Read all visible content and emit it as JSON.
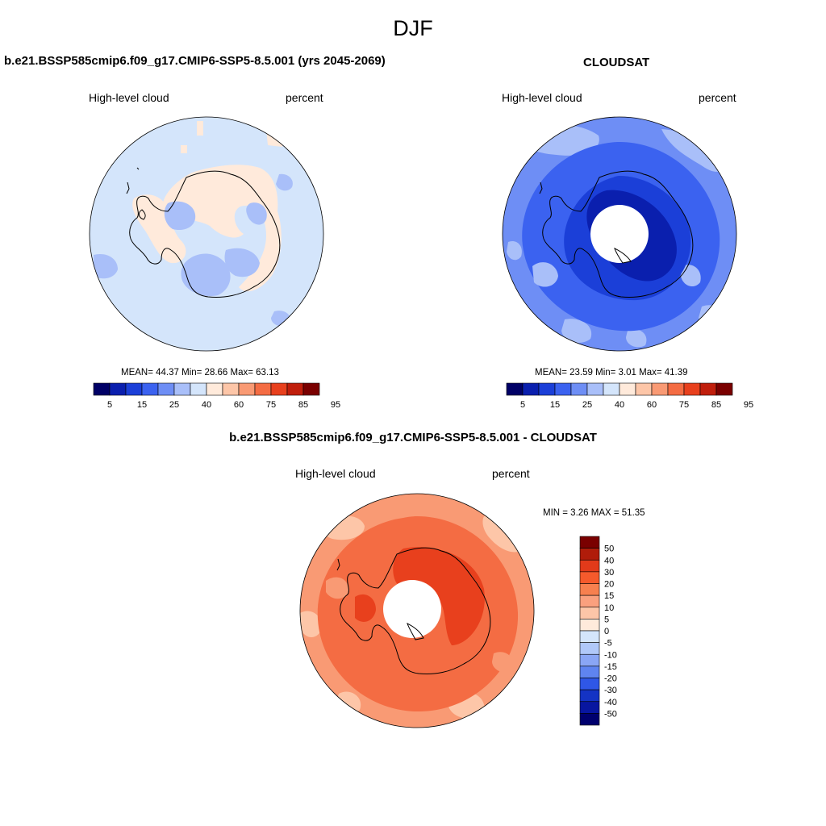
{
  "figure": {
    "season": "DJF"
  },
  "panels": [
    {
      "title": "b.e21.BSSP585cmip6.f09_g17.CMIP6-SSP5-8.5.001 (yrs 2045-2069)",
      "variable": "High-level cloud",
      "units": "percent",
      "stats": "MEAN=  44.37  Min=  28.66  Max=  63.13",
      "has_hole": false
    },
    {
      "title": "CLOUDSAT",
      "variable": "High-level cloud",
      "units": "percent",
      "stats": "MEAN=  23.59  Min=   3.01  Max=  41.39",
      "has_hole": true
    },
    {
      "title": "b.e21.BSSP585cmip6.f09_g17.CMIP6-SSP5-8.5.001 - CLOUDSAT",
      "variable": "High-level cloud",
      "units": "percent",
      "stats": "MIN =   3.26 MAX =  51.35",
      "has_hole": true
    }
  ],
  "colorbar_abs": {
    "colors": [
      "#000066",
      "#0a1fae",
      "#1b3fd8",
      "#3b62f0",
      "#6e8ef5",
      "#a9bff9",
      "#d4e5fb",
      "#ffeadb",
      "#fdc6a8",
      "#f99a74",
      "#f46c43",
      "#e8401d",
      "#c01e0c",
      "#7a0000"
    ],
    "ticks": [
      "5",
      "15",
      "25",
      "40",
      "60",
      "75",
      "85",
      "95"
    ]
  },
  "colorbar_diff": {
    "colors": [
      "#7a0000",
      "#b01c0a",
      "#e23a1a",
      "#f55a2c",
      "#f7804f",
      "#faa07e",
      "#fdc6a8",
      "#ffeadb",
      "#d4e5fb",
      "#b0c8f9",
      "#8aa6f5",
      "#5f84f0",
      "#2f57e6",
      "#1433c4",
      "#0816a0",
      "#00006e"
    ],
    "ticks": [
      "50",
      "40",
      "30",
      "20",
      "15",
      "10",
      "5",
      "0",
      "-5",
      "-10",
      "-15",
      "-20",
      "-30",
      "-40",
      "-50"
    ]
  },
  "map_colors": {
    "panel1_background": "#d4e5fb",
    "panel1_positive": "#ffeadb",
    "panel1_negative": "#a9bff9",
    "panel2_background": "#6e8ef5",
    "panel2_mid": "#3b62f0",
    "panel2_dark": "#1b3fd8",
    "panel2_darkest": "#0a1fae",
    "panel2_light": "#a9bff9",
    "panel3_background": "#f99a74",
    "panel3_mid": "#f46c43",
    "panel3_dark": "#e8401d",
    "panel3_light": "#fdc6a8"
  }
}
